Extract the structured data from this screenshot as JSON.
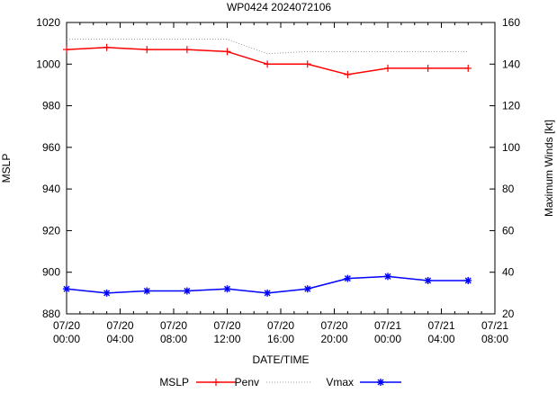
{
  "chart_data": {
    "type": "line",
    "title": "WP0424 2024072106",
    "xlabel": "DATE/TIME",
    "ylabel": "MSLP",
    "y2label": "Maximum Winds [kt]",
    "ylim": [
      880,
      1020
    ],
    "y2lim": [
      20,
      160
    ],
    "xlim_hours": [
      0,
      32
    ],
    "yticks": [
      880,
      900,
      920,
      940,
      960,
      980,
      1000,
      1020
    ],
    "y2ticks": [
      20,
      40,
      60,
      80,
      100,
      120,
      140,
      160
    ],
    "xticks": [
      {
        "hour": 0,
        "date": "07/20",
        "time": "00:00"
      },
      {
        "hour": 4,
        "date": "07/20",
        "time": "04:00"
      },
      {
        "hour": 8,
        "date": "07/20",
        "time": "08:00"
      },
      {
        "hour": 12,
        "date": "07/20",
        "time": "12:00"
      },
      {
        "hour": 16,
        "date": "07/20",
        "time": "16:00"
      },
      {
        "hour": 20,
        "date": "07/20",
        "time": "20:00"
      },
      {
        "hour": 24,
        "date": "07/21",
        "time": "00:00"
      },
      {
        "hour": 28,
        "date": "07/21",
        "time": "04:00"
      },
      {
        "hour": 32,
        "date": "07/21",
        "time": "08:00"
      }
    ],
    "x_hours": [
      0,
      3,
      6,
      9,
      12,
      15,
      18,
      21,
      24,
      27,
      30
    ],
    "series": [
      {
        "name": "MSLP",
        "axis": "left",
        "color": "#ff0000",
        "style": "solid",
        "marker": "plus",
        "values": [
          1007,
          1008,
          1007,
          1007,
          1006,
          1000,
          1000,
          995,
          998,
          998,
          998
        ]
      },
      {
        "name": "Penv",
        "axis": "left",
        "color": "#808080",
        "style": "dotted",
        "marker": "none",
        "values": [
          1012,
          1012,
          1012,
          1012,
          1012,
          1005,
          1006,
          1006,
          1006,
          1006,
          1006
        ]
      },
      {
        "name": "Vmax",
        "axis": "right",
        "color": "#0000ff",
        "style": "solid",
        "marker": "star",
        "values": [
          32,
          30,
          31,
          31,
          32,
          30,
          32,
          37,
          38,
          36,
          36
        ]
      }
    ],
    "grid": false,
    "legend_placement": "bottom"
  }
}
